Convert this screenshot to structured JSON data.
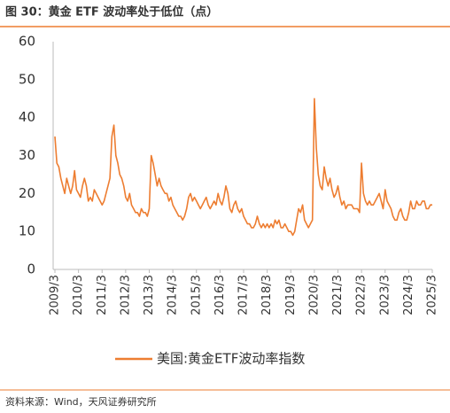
{
  "chart_data": {
    "type": "line",
    "title": "图 30：黄金 ETF 波动率处于低位（点）",
    "source": "资料来源：Wind，天风证券研究所",
    "categories": [
      "2009/3",
      null,
      null,
      null,
      null,
      null,
      null,
      null,
      null,
      null,
      null,
      null,
      "2010/3",
      null,
      null,
      null,
      null,
      null,
      null,
      null,
      null,
      null,
      null,
      null,
      "2011/3",
      null,
      null,
      null,
      null,
      null,
      null,
      null,
      null,
      null,
      null,
      null,
      "2012/3",
      null,
      null,
      null,
      null,
      null,
      null,
      null,
      null,
      null,
      null,
      null,
      "2013/3",
      null,
      null,
      null,
      null,
      null,
      null,
      null,
      null,
      null,
      null,
      null,
      "2014/3",
      null,
      null,
      null,
      null,
      null,
      null,
      null,
      null,
      null,
      null,
      null,
      "2015/3",
      null,
      null,
      null,
      null,
      null,
      null,
      null,
      null,
      null,
      null,
      null,
      "2016/3",
      null,
      null,
      null,
      null,
      null,
      null,
      null,
      null,
      null,
      null,
      null,
      "2017/3",
      null,
      null,
      null,
      null,
      null,
      null,
      null,
      null,
      null,
      null,
      null,
      "2018/3",
      null,
      null,
      null,
      null,
      null,
      null,
      null,
      null,
      null,
      null,
      null,
      "2019/3",
      null,
      null,
      null,
      null,
      null,
      null,
      null,
      null,
      null,
      null,
      null,
      "2020/3",
      null,
      null,
      null,
      null,
      null,
      null,
      null,
      null,
      null,
      null,
      null,
      "2021/3",
      null,
      null,
      null,
      null,
      null,
      null,
      null,
      null,
      null,
      null,
      null,
      "2022/3",
      null,
      null,
      null,
      null,
      null,
      null,
      null,
      null,
      null,
      null,
      null,
      "2023/3",
      null,
      null,
      null,
      null,
      null,
      null,
      null,
      null,
      null,
      null,
      null,
      "2024/3",
      null,
      null,
      null,
      null,
      null,
      null,
      null,
      null,
      null,
      null,
      null,
      "2025/3"
    ],
    "series": [
      {
        "name": "美国:黄金ETF波动率指数",
        "color": "#ED7D31",
        "values": [
          35,
          28,
          27,
          24,
          22,
          20,
          24,
          22,
          20,
          22,
          26,
          21,
          20,
          19,
          22,
          24,
          22,
          18,
          19,
          18,
          21,
          20,
          19,
          18,
          17,
          18,
          20,
          22,
          24,
          35,
          38,
          30,
          28,
          25,
          24,
          22,
          19,
          18,
          20,
          17,
          16,
          15,
          15,
          14,
          16,
          15,
          15,
          14,
          16,
          30,
          28,
          25,
          22,
          24,
          22,
          21,
          20,
          20,
          18,
          19,
          17,
          16,
          15,
          14,
          14,
          13,
          14,
          16,
          19,
          20,
          18,
          19,
          18,
          17,
          16,
          17,
          18,
          19,
          17,
          16,
          17,
          18,
          17,
          20,
          18,
          17,
          19,
          22,
          20,
          16,
          15,
          17,
          18,
          16,
          15,
          16,
          14,
          13,
          12,
          12,
          11,
          11,
          12,
          14,
          12,
          11,
          12,
          11,
          12,
          11,
          12,
          11,
          13,
          12,
          13,
          11,
          11,
          12,
          11,
          10,
          10,
          9,
          10,
          13,
          16,
          15,
          17,
          13,
          12,
          11,
          12,
          13,
          45,
          32,
          25,
          22,
          21,
          27,
          24,
          22,
          24,
          21,
          19,
          20,
          22,
          19,
          17,
          18,
          16,
          17,
          17,
          17,
          16,
          16,
          16,
          15,
          28,
          20,
          18,
          17,
          18,
          17,
          17,
          18,
          19,
          20,
          18,
          16,
          21,
          18,
          17,
          16,
          14,
          13,
          13,
          15,
          16,
          14,
          13,
          13,
          15,
          18,
          16,
          16,
          18,
          17,
          17,
          18,
          18,
          16,
          16,
          17,
          17
        ]
      }
    ],
    "ylim": [
      0,
      60
    ],
    "yticks": [
      0,
      10,
      20,
      30,
      40,
      50,
      60
    ],
    "legend": "bottom"
  }
}
